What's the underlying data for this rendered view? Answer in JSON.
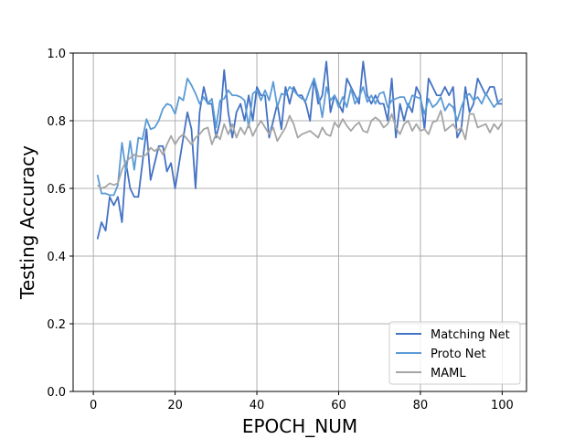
{
  "chart_data": {
    "type": "line",
    "title": "",
    "xlabel": "EPOCH_NUM",
    "ylabel": "Testing Accuracy",
    "xlim": [
      -4.95,
      105.95
    ],
    "ylim": [
      0.0,
      1.0
    ],
    "xticks": [
      0,
      20,
      40,
      60,
      80,
      100
    ],
    "xtick_labels": [
      "0",
      "20",
      "40",
      "60",
      "80",
      "100"
    ],
    "yticks": [
      0.0,
      0.2,
      0.4,
      0.6,
      0.8,
      1.0
    ],
    "ytick_labels": [
      "0.0",
      "0.2",
      "0.4",
      "0.6",
      "0.8",
      "1.0"
    ],
    "grid": true,
    "legend_position": "lower-right",
    "x": [
      1,
      2,
      3,
      4,
      5,
      6,
      7,
      8,
      9,
      10,
      11,
      12,
      13,
      14,
      15,
      16,
      17,
      18,
      19,
      20,
      21,
      22,
      23,
      24,
      25,
      26,
      27,
      28,
      29,
      30,
      31,
      32,
      33,
      34,
      35,
      36,
      37,
      38,
      39,
      40,
      41,
      42,
      43,
      44,
      45,
      46,
      47,
      48,
      49,
      50,
      51,
      52,
      53,
      54,
      55,
      56,
      57,
      58,
      59,
      60,
      61,
      62,
      63,
      64,
      65,
      66,
      67,
      68,
      69,
      70,
      71,
      72,
      73,
      74,
      75,
      76,
      77,
      78,
      79,
      80,
      81,
      82,
      83,
      84,
      85,
      86,
      87,
      88,
      89,
      90,
      91,
      92,
      93,
      94,
      95,
      96,
      97,
      98,
      99,
      100
    ],
    "series": [
      {
        "name": "Matching Net",
        "color": "#4472c4",
        "values": [
          0.45,
          0.5,
          0.475,
          0.575,
          0.55,
          0.575,
          0.5,
          0.675,
          0.6,
          0.575,
          0.575,
          0.675,
          0.775,
          0.625,
          0.675,
          0.725,
          0.725,
          0.65,
          0.675,
          0.6,
          0.675,
          0.75,
          0.825,
          0.775,
          0.6,
          0.825,
          0.9,
          0.85,
          0.85,
          0.75,
          0.8,
          0.95,
          0.825,
          0.75,
          0.825,
          0.85,
          0.8,
          0.875,
          0.8,
          0.9,
          0.875,
          0.875,
          0.75,
          0.8,
          0.85,
          0.775,
          0.9,
          0.85,
          0.9,
          0.875,
          0.875,
          0.85,
          0.8,
          0.925,
          0.85,
          0.875,
          0.975,
          0.825,
          0.875,
          0.85,
          0.825,
          0.925,
          0.9,
          0.875,
          0.85,
          0.975,
          0.875,
          0.85,
          0.875,
          0.85,
          0.85,
          0.8,
          0.925,
          0.75,
          0.85,
          0.8,
          0.85,
          0.825,
          0.9,
          0.875,
          0.775,
          0.925,
          0.9,
          0.875,
          0.875,
          0.9,
          0.875,
          0.9,
          0.75,
          0.775,
          0.9,
          0.825,
          0.85,
          0.925,
          0.9,
          0.875,
          0.9,
          0.9,
          0.85,
          0.85
        ]
      },
      {
        "name": "Proto Net",
        "color": "#5b9bd5",
        "values": [
          0.64,
          0.585,
          0.585,
          0.58,
          0.58,
          0.61,
          0.735,
          0.65,
          0.74,
          0.655,
          0.75,
          0.745,
          0.805,
          0.775,
          0.78,
          0.8,
          0.835,
          0.85,
          0.845,
          0.82,
          0.87,
          0.86,
          0.925,
          0.905,
          0.88,
          0.85,
          0.87,
          0.85,
          0.865,
          0.78,
          0.86,
          0.865,
          0.89,
          0.875,
          0.875,
          0.87,
          0.86,
          0.78,
          0.88,
          0.89,
          0.86,
          0.89,
          0.86,
          0.915,
          0.84,
          0.88,
          0.875,
          0.9,
          0.89,
          0.875,
          0.865,
          0.86,
          0.895,
          0.925,
          0.88,
          0.81,
          0.9,
          0.86,
          0.875,
          0.84,
          0.87,
          0.84,
          0.895,
          0.85,
          0.87,
          0.9,
          0.855,
          0.875,
          0.85,
          0.88,
          0.885,
          0.84,
          0.86,
          0.865,
          0.87,
          0.87,
          0.84,
          0.875,
          0.87,
          0.865,
          0.82,
          0.865,
          0.84,
          0.85,
          0.87,
          0.83,
          0.85,
          0.84,
          0.8,
          0.84,
          0.87,
          0.88,
          0.86,
          0.87,
          0.85,
          0.88,
          0.86,
          0.84,
          0.855,
          0.865
        ]
      },
      {
        "name": "MAML",
        "color": "#a5a5a5",
        "values": [
          0.61,
          0.6,
          0.605,
          0.615,
          0.61,
          0.615,
          0.655,
          0.68,
          0.69,
          0.7,
          0.695,
          0.695,
          0.7,
          0.72,
          0.71,
          0.72,
          0.7,
          0.73,
          0.755,
          0.73,
          0.75,
          0.76,
          0.745,
          0.73,
          0.75,
          0.76,
          0.775,
          0.78,
          0.73,
          0.76,
          0.745,
          0.79,
          0.76,
          0.79,
          0.75,
          0.78,
          0.76,
          0.79,
          0.755,
          0.78,
          0.8,
          0.78,
          0.76,
          0.78,
          0.74,
          0.76,
          0.78,
          0.815,
          0.79,
          0.75,
          0.76,
          0.765,
          0.77,
          0.76,
          0.75,
          0.78,
          0.76,
          0.755,
          0.795,
          0.78,
          0.805,
          0.785,
          0.77,
          0.785,
          0.795,
          0.77,
          0.765,
          0.8,
          0.81,
          0.8,
          0.78,
          0.79,
          0.82,
          0.78,
          0.76,
          0.79,
          0.8,
          0.77,
          0.79,
          0.77,
          0.775,
          0.76,
          0.795,
          0.8,
          0.83,
          0.77,
          0.78,
          0.79,
          0.77,
          0.78,
          0.745,
          0.82,
          0.82,
          0.78,
          0.785,
          0.79,
          0.765,
          0.79,
          0.775,
          0.795
        ]
      }
    ]
  }
}
